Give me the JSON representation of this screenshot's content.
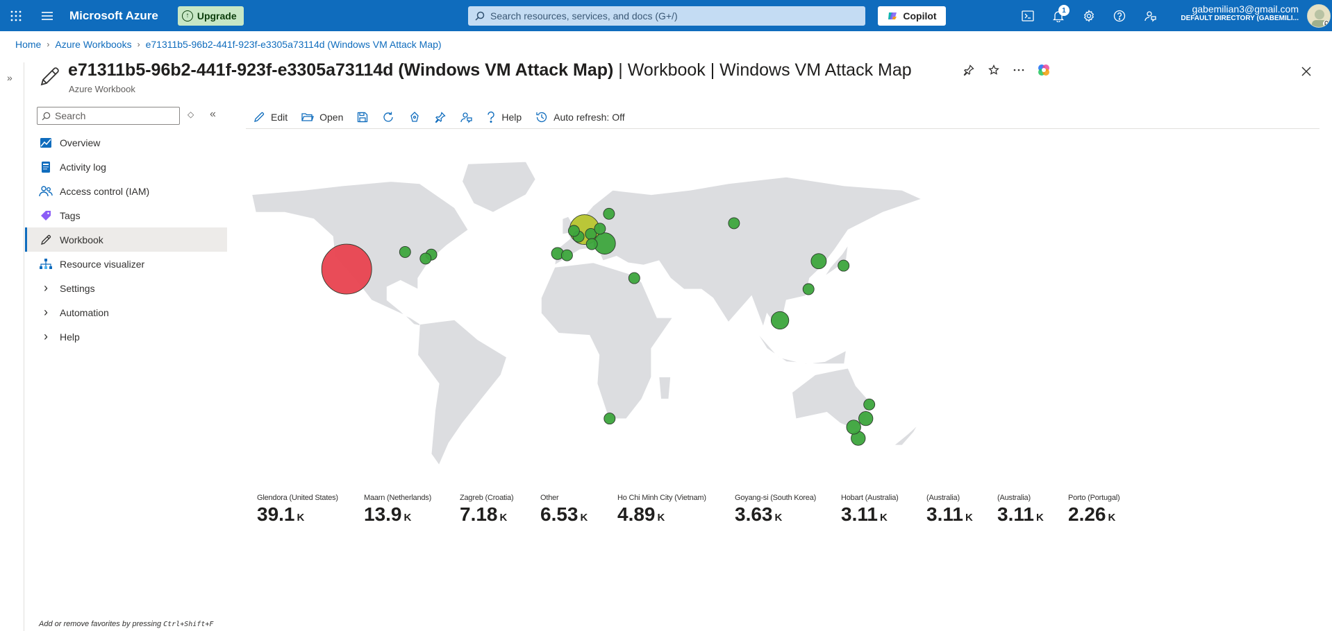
{
  "topbar": {
    "brand": "Microsoft Azure",
    "upgrade_label": "Upgrade",
    "search_placeholder": "Search resources, services, and docs (G+/)",
    "copilot_label": "Copilot",
    "notification_count": "1",
    "account_email": "gabemilian3@gmail.com",
    "account_directory": "DEFAULT DIRECTORY (GABEMILI..."
  },
  "breadcrumb": [
    "Home",
    "Azure Workbooks",
    "e71311b5-96b2-441f-923f-e3305a73114d (Windows VM Attack Map)"
  ],
  "header": {
    "title_main": "e71311b5-96b2-441f-923f-e3305a73114d (Windows VM Attack Map)",
    "title_rest": " | Workbook | Windows VM Attack Map",
    "subtitle": "Azure Workbook"
  },
  "nav": {
    "search_placeholder": "Search",
    "items": [
      {
        "label": "Overview",
        "icon": "overview-icon",
        "color": "#0f6cbd"
      },
      {
        "label": "Activity log",
        "icon": "activity-log-icon",
        "color": "#0f6cbd"
      },
      {
        "label": "Access control (IAM)",
        "icon": "iam-icon",
        "color": "#0f6cbd"
      },
      {
        "label": "Tags",
        "icon": "tag-icon",
        "color": "#8b5cf6"
      },
      {
        "label": "Workbook",
        "icon": "pencil-icon",
        "active": true
      },
      {
        "label": "Resource visualizer",
        "icon": "resource-visualizer-icon",
        "color": "#0f6cbd"
      },
      {
        "label": "Settings",
        "expandable": true
      },
      {
        "label": "Automation",
        "expandable": true
      },
      {
        "label": "Help",
        "expandable": true
      }
    ],
    "favorites_hint_prefix": "Add or remove favorites by pressing ",
    "favorites_hint_keys": "Ctrl+Shift+F"
  },
  "toolbar": {
    "edit": "Edit",
    "open": "Open",
    "help": "Help",
    "auto_refresh": "Auto refresh: Off"
  },
  "map": {
    "colors": {
      "high": "#e8424f",
      "mid": "#b7c42e",
      "low": "#3da53d",
      "land": "#dcdde0"
    },
    "points": [
      {
        "name": "Glendora (United States)",
        "lon": -117.9,
        "lat": 34.1,
        "count": 39100,
        "level": "high"
      },
      {
        "name": "Maarn (Netherlands)",
        "lon": 5.4,
        "lat": 52.1,
        "count": 13900,
        "level": "mid"
      },
      {
        "name": "Zagreb (Croatia)",
        "lon": 15.9,
        "lat": 45.8,
        "count": 7180,
        "level": "low"
      },
      {
        "name": "Ho Chi Minh City (Vietnam)",
        "lon": 106.7,
        "lat": 10.8,
        "count": 4890,
        "level": "low"
      },
      {
        "name": "Goyang-si (South Korea)",
        "lon": 126.8,
        "lat": 37.7,
        "count": 3630,
        "level": "low"
      },
      {
        "name": "Hobart (Australia)",
        "lon": 147.3,
        "lat": -42.9,
        "count": 3110,
        "level": "low"
      },
      {
        "name": "Melbourne (Australia)",
        "lon": 144.9,
        "lat": -37.8,
        "count": 3110,
        "level": "low"
      },
      {
        "name": "Sydney (Australia)",
        "lon": 151.2,
        "lat": -33.9,
        "count": 3110,
        "level": "low"
      },
      {
        "name": "Porto (Portugal)",
        "lon": -8.6,
        "lat": 41.2,
        "count": 2260,
        "level": "low"
      },
      {
        "name": "Cape Town",
        "lon": 18.4,
        "lat": -33.9,
        "count": 1500,
        "level": "low"
      },
      {
        "name": "Paris",
        "lon": 2.3,
        "lat": 48.9,
        "count": 1400,
        "level": "low"
      },
      {
        "name": "Madrid",
        "lon": -3.7,
        "lat": 40.4,
        "count": 1000,
        "level": "low"
      },
      {
        "name": "Milan",
        "lon": 9.2,
        "lat": 45.5,
        "count": 900,
        "level": "low"
      },
      {
        "name": "London",
        "lon": -0.1,
        "lat": 51.5,
        "count": 1100,
        "level": "low"
      },
      {
        "name": "Berlin",
        "lon": 13.4,
        "lat": 52.5,
        "count": 800,
        "level": "low"
      },
      {
        "name": "Stockholm",
        "lon": 18.1,
        "lat": 59.3,
        "count": 700,
        "level": "low"
      },
      {
        "name": "Frankfurt",
        "lon": 8.7,
        "lat": 50.1,
        "count": 1000,
        "level": "low"
      },
      {
        "name": "New York",
        "lon": -74.0,
        "lat": 40.7,
        "count": 1400,
        "level": "low"
      },
      {
        "name": "Washington",
        "lon": -77.0,
        "lat": 38.9,
        "count": 1000,
        "level": "low"
      },
      {
        "name": "Chicago",
        "lon": -87.6,
        "lat": 41.9,
        "count": 800,
        "level": "low"
      },
      {
        "name": "Cairo",
        "lon": 31.2,
        "lat": 30.0,
        "count": 700,
        "level": "low"
      },
      {
        "name": "Novosibirsk",
        "lon": 82.9,
        "lat": 55.0,
        "count": 700,
        "level": "low"
      },
      {
        "name": "Tokyo",
        "lon": 139.7,
        "lat": 35.7,
        "count": 700,
        "level": "low"
      },
      {
        "name": "Taipei",
        "lon": 121.5,
        "lat": 25.0,
        "count": 700,
        "level": "low"
      },
      {
        "name": "Brisbane",
        "lon": 153.0,
        "lat": -27.5,
        "count": 700,
        "level": "low"
      }
    ]
  },
  "tiles": [
    {
      "label": "Glendora (United States)",
      "value": "39.1",
      "unit": "K"
    },
    {
      "label": "Maarn (Netherlands)",
      "value": "13.9",
      "unit": "K"
    },
    {
      "label": "Zagreb (Croatia)",
      "value": "7.18",
      "unit": "K"
    },
    {
      "label": "Other",
      "value": "6.53",
      "unit": "K"
    },
    {
      "label": "Ho Chi Minh City (Vietnam)",
      "value": "4.89",
      "unit": "K"
    },
    {
      "label": "Goyang-si (South Korea)",
      "value": "3.63",
      "unit": "K"
    },
    {
      "label": "Hobart (Australia)",
      "value": "3.11",
      "unit": "K"
    },
    {
      "label": "(Australia)",
      "value": "3.11",
      "unit": "K"
    },
    {
      "label": "(Australia)",
      "value": "3.11",
      "unit": "K"
    },
    {
      "label": "Porto (Portugal)",
      "value": "2.26",
      "unit": "K"
    }
  ]
}
